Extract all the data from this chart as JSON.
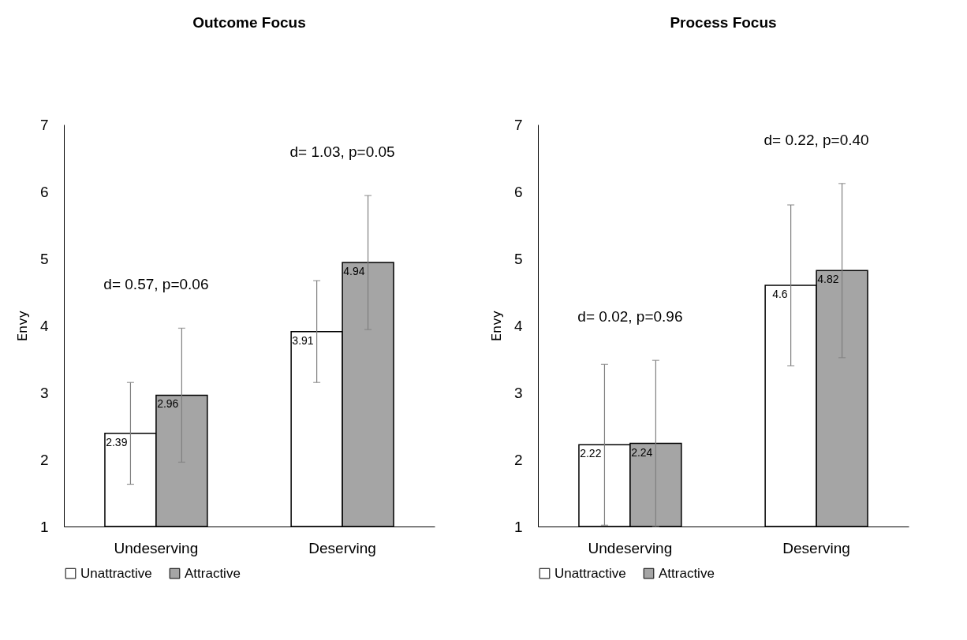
{
  "chart_data": [
    {
      "type": "bar",
      "title": "Outcome Focus",
      "ylabel": "Envy",
      "categories": [
        "Undeserving",
        "Deserving"
      ],
      "series": [
        {
          "name": "Unattractive",
          "color": "#ffffff",
          "values": [
            2.39,
            3.91
          ],
          "errors": [
            0.76,
            0.76
          ]
        },
        {
          "name": "Attractive",
          "color": "#a5a5a5",
          "values": [
            2.96,
            4.94
          ],
          "errors": [
            1.0,
            1.0
          ]
        }
      ],
      "ylim": [
        1,
        7
      ],
      "yticks": [
        1,
        2,
        3,
        4,
        5,
        6,
        7
      ],
      "grid": false,
      "legend": "bottom",
      "data_labels": true,
      "annotations": [
        "d= 0.57, p=0.06",
        "d= 1.03, p=0.05"
      ]
    },
    {
      "type": "bar",
      "title": "Process Focus",
      "ylabel": "Envy",
      "categories": [
        "Undeserving",
        "Deserving"
      ],
      "series": [
        {
          "name": "Unattractive",
          "color": "#ffffff",
          "values": [
            2.22,
            4.6
          ],
          "errors": [
            1.2,
            1.2
          ]
        },
        {
          "name": "Attractive",
          "color": "#a5a5a5",
          "values": [
            2.24,
            4.82
          ],
          "errors": [
            1.24,
            1.3
          ]
        }
      ],
      "ylim": [
        1,
        7
      ],
      "yticks": [
        1,
        2,
        3,
        4,
        5,
        6,
        7
      ],
      "grid": false,
      "legend": "bottom",
      "data_labels": true,
      "annotations": [
        "d= 0.02, p=0.96",
        "d= 0.22, p=0.40"
      ]
    }
  ]
}
